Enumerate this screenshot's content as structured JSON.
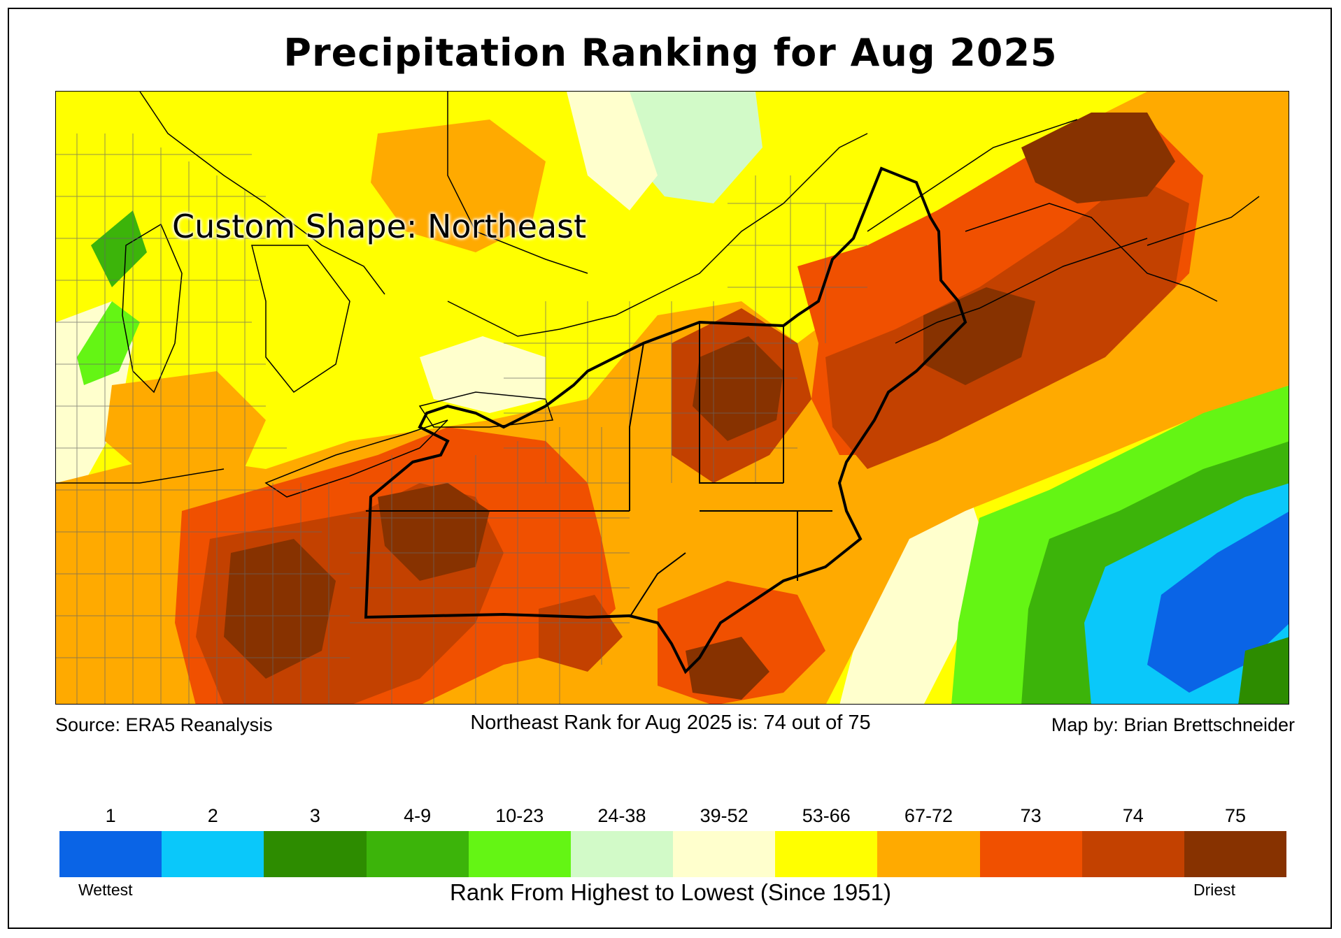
{
  "title": "Precipitation Ranking for Aug 2025",
  "map": {
    "region_label": "Custom Shape: Northeast",
    "region": "Northeastern United States and Maritime Canada",
    "state_outlines": [
      "Maine",
      "New Hampshire",
      "Vermont",
      "Massachusetts",
      "Rhode Island",
      "Connecticut",
      "New York",
      "New Jersey",
      "Pennsylvania"
    ]
  },
  "footer": {
    "source": "Source: ERA5 Reanalysis",
    "rank_statement": "Northeast Rank for Aug 2025 is: 74 out of 75",
    "credit": "Map by: Brian Brettschneider"
  },
  "legend": {
    "bins": [
      {
        "label": "1",
        "color": "#0a64e6"
      },
      {
        "label": "2",
        "color": "#0ac8fa"
      },
      {
        "label": "3",
        "color": "#2d8c00"
      },
      {
        "label": "4-9",
        "color": "#3cb40a"
      },
      {
        "label": "10-23",
        "color": "#64f514"
      },
      {
        "label": "24-38",
        "color": "#d2fac8"
      },
      {
        "label": "39-52",
        "color": "#ffffcd"
      },
      {
        "label": "53-66",
        "color": "#ffff00"
      },
      {
        "label": "67-72",
        "color": "#ffaa00"
      },
      {
        "label": "73",
        "color": "#f05000"
      },
      {
        "label": "74",
        "color": "#c34100"
      },
      {
        "label": "75",
        "color": "#873200"
      }
    ],
    "low_label": "Wettest",
    "high_label": "Driest",
    "caption": "Rank From Highest to Lowest (Since 1951)"
  }
}
